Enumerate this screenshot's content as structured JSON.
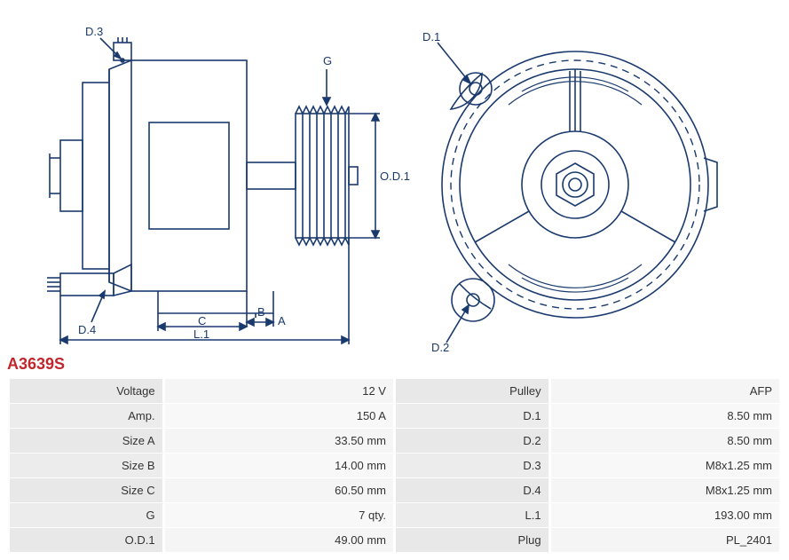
{
  "part_number": "A3639S",
  "part_number_color": "#c1272d",
  "diagram": {
    "line_color": "#1a3a6e",
    "line_width": 1.6,
    "background": "#ffffff",
    "label_font_size": 13,
    "labels_left": {
      "D3": "D.3",
      "D4": "D.4",
      "G": "G",
      "OD1": "O.D.1",
      "A": "A",
      "B": "B",
      "C": "C",
      "L1": "L.1"
    },
    "labels_right": {
      "D1": "D.1",
      "D2": "D.2"
    }
  },
  "specs": {
    "rows": [
      {
        "l1": "Voltage",
        "v1": "12 V",
        "l2": "Pulley",
        "v2": "AFP"
      },
      {
        "l1": "Amp.",
        "v1": "150 A",
        "l2": "D.1",
        "v2": "8.50 mm"
      },
      {
        "l1": "Size A",
        "v1": "33.50 mm",
        "l2": "D.2",
        "v2": "8.50 mm"
      },
      {
        "l1": "Size B",
        "v1": "14.00 mm",
        "l2": "D.3",
        "v2": "M8x1.25 mm"
      },
      {
        "l1": "Size C",
        "v1": "60.50 mm",
        "l2": "D.4",
        "v2": "M8x1.25 mm"
      },
      {
        "l1": "G",
        "v1": "7 qty.",
        "l2": "L.1",
        "v2": "193.00 mm"
      },
      {
        "l1": "O.D.1",
        "v1": "49.00 mm",
        "l2": "Plug",
        "v2": "PL_2401"
      }
    ],
    "label_bg": "#e8e8e8",
    "value_bg": "#f5f5f5",
    "font_size": 13,
    "text_color": "#333333"
  }
}
